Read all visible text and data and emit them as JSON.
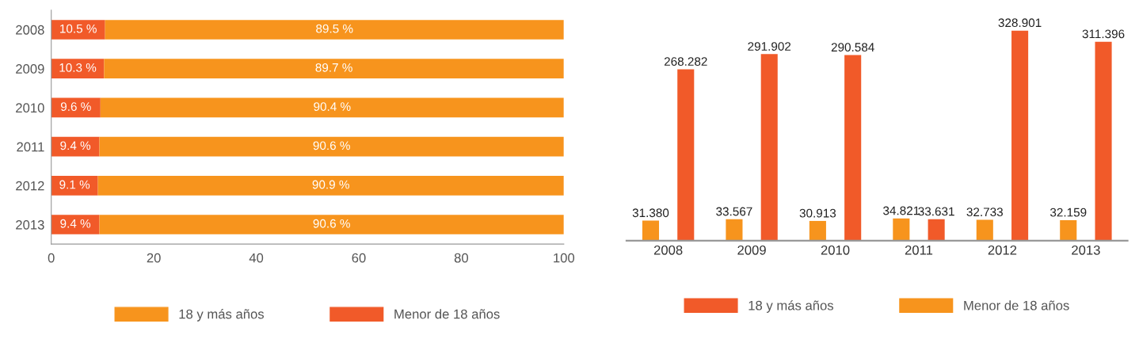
{
  "chart_data": [
    {
      "type": "bar",
      "orientation": "horizontal",
      "stacked": true,
      "categories": [
        "2008",
        "2009",
        "2010",
        "2011",
        "2012",
        "2013"
      ],
      "xlim": [
        0,
        100
      ],
      "xticks": [
        0,
        20,
        40,
        60,
        80,
        100
      ],
      "legend": "bottom",
      "grid": false,
      "series": [
        {
          "name": "Menor de 18 años",
          "color": "#f15a29",
          "values": [
            10.5,
            10.3,
            9.6,
            9.4,
            9.1,
            9.4
          ],
          "value_labels": [
            "10.5 %",
            "10.3 %",
            "9.6 %",
            "9.4 %",
            "9.1 %",
            "9.4 %"
          ]
        },
        {
          "name": "18 y más años",
          "color": "#f7941d",
          "values": [
            89.5,
            89.7,
            90.4,
            90.6,
            90.9,
            90.6
          ],
          "value_labels": [
            "89.5 %",
            "89.7 %",
            "90.4 %",
            "90.6 %",
            "90.9 %",
            "90.6 %"
          ]
        }
      ]
    },
    {
      "type": "bar",
      "categories": [
        "2008",
        "2009",
        "2010",
        "2011",
        "2012",
        "2013"
      ],
      "legend": "bottom",
      "grid": false,
      "tick_labels": "x",
      "series": [
        {
          "name": "Menor de 18 años",
          "color": "#f7941d",
          "values": [
            31.38,
            33.567,
            30.913,
            34.821,
            32.733,
            32.159
          ],
          "value_labels": [
            "31.380",
            "33.567",
            "30.913",
            "34.821",
            "32.733",
            "32.159"
          ]
        },
        {
          "name": "18 y más años",
          "color": "#f15a29",
          "values": [
            268.282,
            291.902,
            290.584,
            33.631,
            328.901,
            311.396
          ],
          "value_labels": [
            "268.282",
            "291.902",
            "290.584",
            "33.631",
            "328.901",
            "311.396"
          ]
        }
      ]
    }
  ]
}
